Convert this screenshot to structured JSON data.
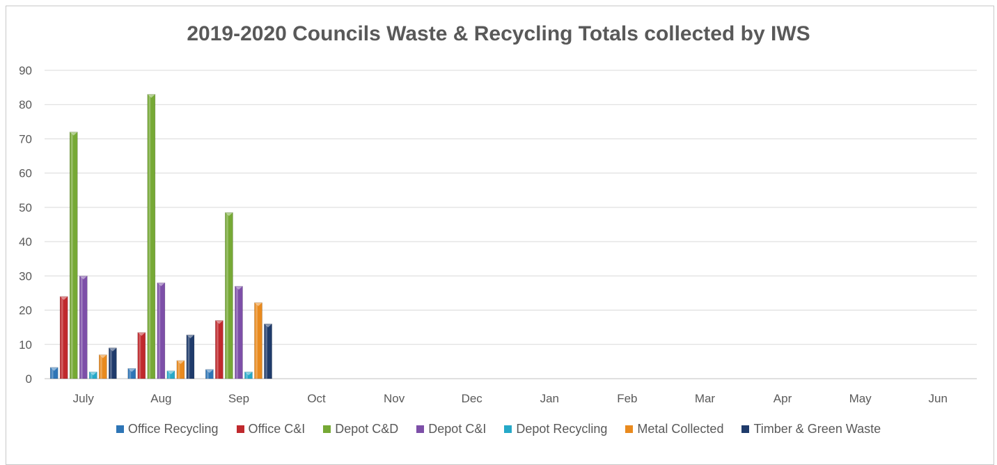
{
  "chart_data": {
    "type": "bar",
    "title": "2019-2020 Councils Waste & Recycling Totals collected by IWS",
    "xlabel": "",
    "ylabel": "",
    "ylim": [
      0,
      90
    ],
    "yticks": [
      0,
      10,
      20,
      30,
      40,
      50,
      60,
      70,
      80,
      90
    ],
    "grid": true,
    "legend_position": "bottom",
    "categories": [
      "July",
      "Aug",
      "Sep",
      "Oct",
      "Nov",
      "Dec",
      "Jan",
      "Feb",
      "Mar",
      "Apr",
      "May",
      "Jun"
    ],
    "series": [
      {
        "name": "Office Recycling",
        "color": "#2e75b6",
        "values": [
          3.3,
          3.0,
          2.7,
          null,
          null,
          null,
          null,
          null,
          null,
          null,
          null,
          null
        ]
      },
      {
        "name": "Office C&I",
        "color": "#c0292d",
        "values": [
          24,
          13.5,
          17,
          null,
          null,
          null,
          null,
          null,
          null,
          null,
          null,
          null
        ]
      },
      {
        "name": "Depot C&D",
        "color": "#76a935",
        "values": [
          72,
          83,
          48.5,
          null,
          null,
          null,
          null,
          null,
          null,
          null,
          null,
          null
        ]
      },
      {
        "name": "Depot C&I",
        "color": "#7d4fa8",
        "values": [
          30,
          28,
          27,
          null,
          null,
          null,
          null,
          null,
          null,
          null,
          null,
          null
        ]
      },
      {
        "name": "Depot Recycling",
        "color": "#26a9c8",
        "values": [
          2.0,
          2.3,
          2.0,
          null,
          null,
          null,
          null,
          null,
          null,
          null,
          null,
          null
        ]
      },
      {
        "name": "Metal Collected",
        "color": "#e98a1e",
        "values": [
          7.0,
          5.3,
          22.2,
          null,
          null,
          null,
          null,
          null,
          null,
          null,
          null,
          null
        ]
      },
      {
        "name": "Timber & Green Waste",
        "color": "#1f3b6b",
        "values": [
          9.0,
          12.8,
          16.0,
          null,
          null,
          null,
          null,
          null,
          null,
          null,
          null,
          null
        ]
      }
    ]
  }
}
